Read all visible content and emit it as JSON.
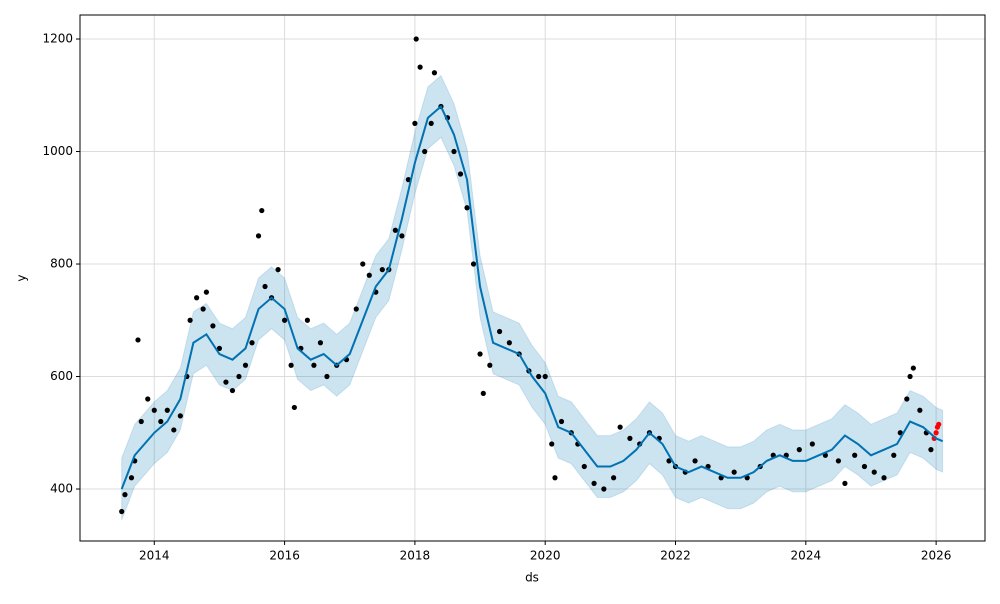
{
  "chart_data": {
    "type": "forecast",
    "x_label": "ds",
    "y_label": "y",
    "xlim": [
      2012.86,
      2026.75
    ],
    "xticks": [
      2014,
      2016,
      2018,
      2020,
      2022,
      2024,
      2026
    ],
    "ylim": [
      307.6,
      1242.7
    ],
    "yticks": [
      400,
      600,
      800,
      1000,
      1200
    ],
    "grid": true,
    "band": {
      "color": "#0072B2",
      "x": [
        2013.5,
        2013.7,
        2014.0,
        2014.2,
        2014.4,
        2014.6,
        2014.8,
        2015.0,
        2015.2,
        2015.4,
        2015.6,
        2015.8,
        2016.0,
        2016.2,
        2016.4,
        2016.6,
        2016.8,
        2017.0,
        2017.2,
        2017.4,
        2017.6,
        2017.8,
        2018.0,
        2018.2,
        2018.4,
        2018.6,
        2018.8,
        2019.0,
        2019.2,
        2019.4,
        2019.6,
        2019.8,
        2020.0,
        2020.2,
        2020.4,
        2020.6,
        2020.8,
        2021.0,
        2021.2,
        2021.4,
        2021.6,
        2021.8,
        2022.0,
        2022.2,
        2022.4,
        2022.6,
        2022.8,
        2023.0,
        2023.2,
        2023.4,
        2023.6,
        2023.8,
        2024.0,
        2024.2,
        2024.4,
        2024.6,
        2024.8,
        2025.0,
        2025.2,
        2025.4,
        2025.6,
        2025.8,
        2026.0,
        2026.1
      ],
      "lower": [
        345,
        405,
        445,
        465,
        505,
        605,
        620,
        585,
        575,
        595,
        665,
        685,
        665,
        595,
        575,
        585,
        565,
        585,
        645,
        705,
        735,
        825,
        925,
        1005,
        1025,
        975,
        895,
        705,
        605,
        595,
        585,
        545,
        515,
        455,
        445,
        415,
        385,
        385,
        395,
        415,
        445,
        425,
        385,
        375,
        385,
        375,
        365,
        365,
        375,
        395,
        405,
        395,
        395,
        405,
        415,
        440,
        425,
        405,
        415,
        425,
        465,
        455,
        435,
        430
      ],
      "upper": [
        455,
        515,
        555,
        575,
        615,
        715,
        730,
        695,
        685,
        705,
        775,
        795,
        775,
        705,
        685,
        695,
        675,
        695,
        755,
        815,
        845,
        935,
        1035,
        1115,
        1135,
        1085,
        1005,
        815,
        715,
        705,
        695,
        655,
        625,
        565,
        555,
        525,
        495,
        495,
        505,
        525,
        555,
        535,
        495,
        485,
        495,
        485,
        475,
        475,
        485,
        505,
        515,
        505,
        505,
        515,
        525,
        550,
        535,
        515,
        525,
        535,
        575,
        565,
        545,
        540
      ]
    },
    "series": [
      {
        "color": "#000000",
        "x": [
          2013.5,
          2013.55,
          2013.65,
          2013.7,
          2013.75,
          2013.8,
          2013.9,
          2014.0,
          2014.1,
          2014.2,
          2014.3,
          2014.4,
          2014.5,
          2014.55,
          2014.65,
          2014.75,
          2014.8,
          2014.9,
          2015.0,
          2015.1,
          2015.2,
          2015.3,
          2015.4,
          2015.5,
          2015.6,
          2015.65,
          2015.7,
          2015.8,
          2015.9,
          2016.0,
          2016.1,
          2016.15,
          2016.25,
          2016.35,
          2016.45,
          2016.55,
          2016.65,
          2016.8,
          2016.95,
          2017.1,
          2017.2,
          2017.3,
          2017.4,
          2017.5,
          2017.6,
          2017.7,
          2017.8,
          2017.9,
          2018.0,
          2018.02,
          2018.08,
          2018.15,
          2018.25,
          2018.3,
          2018.4,
          2018.5,
          2018.6,
          2018.7,
          2018.8,
          2018.9,
          2019.0,
          2019.05,
          2019.15,
          2019.3,
          2019.45,
          2019.6,
          2019.75,
          2019.9,
          2020.0,
          2020.1,
          2020.15,
          2020.25,
          2020.4,
          2020.5,
          2020.6,
          2020.75,
          2020.9,
          2021.05,
          2021.15,
          2021.3,
          2021.45,
          2021.6,
          2021.75,
          2021.9,
          2022.0,
          2022.15,
          2022.3,
          2022.5,
          2022.7,
          2022.9,
          2023.1,
          2023.3,
          2023.5,
          2023.7,
          2023.9,
          2024.1,
          2024.3,
          2024.5,
          2024.6,
          2024.75,
          2024.9,
          2025.05,
          2025.2,
          2025.35,
          2025.45,
          2025.55,
          2025.6,
          2025.65,
          2025.75,
          2025.85,
          2025.92
        ],
        "values": [
          360,
          390,
          420,
          450,
          665,
          520,
          560,
          540,
          520,
          540,
          505,
          530,
          600,
          700,
          740,
          720,
          750,
          690,
          650,
          590,
          575,
          600,
          620,
          660,
          850,
          895,
          760,
          740,
          790,
          700,
          620,
          545,
          650,
          700,
          620,
          660,
          600,
          620,
          630,
          720,
          800,
          780,
          750,
          790,
          790,
          860,
          850,
          950,
          1050,
          1200,
          1150,
          1000,
          1050,
          1140,
          1080,
          1060,
          1000,
          960,
          900,
          800,
          640,
          570,
          620,
          680,
          660,
          640,
          610,
          600,
          600,
          480,
          420,
          520,
          500,
          480,
          440,
          410,
          400,
          420,
          510,
          490,
          480,
          500,
          490,
          450,
          440,
          430,
          450,
          440,
          420,
          430,
          420,
          440,
          460,
          460,
          470,
          480,
          460,
          450,
          410,
          460,
          440,
          430,
          420,
          460,
          500,
          560,
          600,
          615,
          540,
          500,
          470
        ]
      },
      {
        "color": "#ff0000",
        "x": [
          2025.97,
          2026.0,
          2026.02,
          2026.04
        ],
        "values": [
          490,
          500,
          510,
          515
        ]
      },
      {
        "color": "#0072B2",
        "line": true,
        "x": [
          2013.5,
          2013.7,
          2014.0,
          2014.2,
          2014.4,
          2014.6,
          2014.8,
          2015.0,
          2015.2,
          2015.4,
          2015.6,
          2015.8,
          2016.0,
          2016.2,
          2016.4,
          2016.6,
          2016.8,
          2017.0,
          2017.2,
          2017.4,
          2017.6,
          2017.8,
          2018.0,
          2018.2,
          2018.4,
          2018.6,
          2018.8,
          2019.0,
          2019.2,
          2019.4,
          2019.6,
          2019.8,
          2020.0,
          2020.2,
          2020.4,
          2020.6,
          2020.8,
          2021.0,
          2021.2,
          2021.4,
          2021.6,
          2021.8,
          2022.0,
          2022.2,
          2022.4,
          2022.6,
          2022.8,
          2023.0,
          2023.2,
          2023.4,
          2023.6,
          2023.8,
          2024.0,
          2024.2,
          2024.4,
          2024.6,
          2024.8,
          2025.0,
          2025.2,
          2025.4,
          2025.6,
          2025.8,
          2026.0,
          2026.1
        ],
        "values": [
          400,
          460,
          500,
          520,
          560,
          660,
          675,
          640,
          630,
          650,
          720,
          740,
          720,
          650,
          630,
          640,
          620,
          640,
          700,
          760,
          790,
          880,
          980,
          1060,
          1080,
          1030,
          950,
          760,
          660,
          650,
          640,
          600,
          570,
          510,
          500,
          470,
          440,
          440,
          450,
          470,
          500,
          480,
          440,
          430,
          440,
          430,
          420,
          420,
          430,
          450,
          460,
          450,
          450,
          460,
          470,
          495,
          480,
          460,
          470,
          480,
          520,
          510,
          490,
          485
        ]
      }
    ]
  }
}
